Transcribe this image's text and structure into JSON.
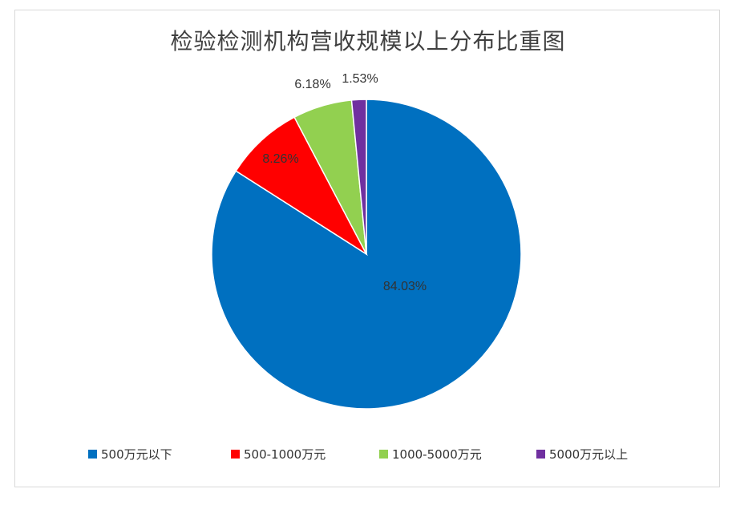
{
  "chart_data": {
    "type": "pie",
    "title": "检验检测机构营收规模以上分布比重图",
    "categories": [
      "500万元以下",
      "500-1000万元",
      "1000-5000万元",
      "5000万元以上"
    ],
    "values": [
      84.03,
      8.26,
      6.18,
      1.53
    ],
    "data_labels": [
      "84.03%",
      "8.26%",
      "6.18%",
      "1.53%"
    ],
    "colors": [
      "#0070C0",
      "#FF0000",
      "#92D050",
      "#7030A0"
    ],
    "legend_position": "bottom",
    "start_angle": "top, clockwise"
  }
}
